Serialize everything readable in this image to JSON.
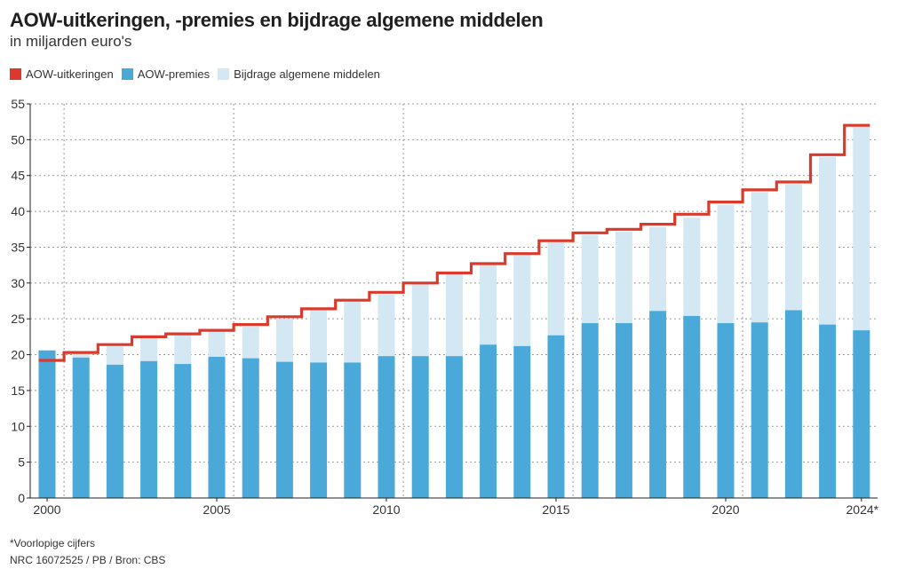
{
  "header": {
    "title": "AOW-uitkeringen, -premies en bijdrage algemene middelen",
    "subtitle": "in miljarden euro's"
  },
  "legend": {
    "items": [
      {
        "label": "AOW-uitkeringen",
        "color": "#d93a2b"
      },
      {
        "label": "AOW-premies",
        "color": "#4aa9d8"
      },
      {
        "label": "Bijdrage algemene middelen",
        "color": "#d3e8f3"
      }
    ]
  },
  "footer": {
    "note": "*Voorlopige cijfers",
    "credit": "NRC 16072525 / PB / Bron: CBS"
  },
  "chart_data": {
    "type": "bar",
    "stacked": true,
    "categories": [
      "2000",
      "2001",
      "2002",
      "2003",
      "2004",
      "2005",
      "2006",
      "2007",
      "2008",
      "2009",
      "2010",
      "2011",
      "2012",
      "2013",
      "2014",
      "2015",
      "2016",
      "2017",
      "2018",
      "2019",
      "2020",
      "2021",
      "2022",
      "2023",
      "2024*"
    ],
    "x_tick_labels": [
      "2000",
      "2005",
      "2010",
      "2015",
      "2020",
      "2024*"
    ],
    "ylim": [
      0,
      55
    ],
    "y_ticks": [
      0,
      5,
      10,
      15,
      20,
      25,
      30,
      35,
      40,
      45,
      50,
      55
    ],
    "grid": true,
    "series": [
      {
        "name": "AOW-premies",
        "type": "bar",
        "color": "#4aa9d8",
        "values": [
          20.6,
          19.6,
          18.6,
          19.1,
          18.7,
          19.7,
          19.5,
          19.0,
          18.9,
          18.9,
          19.8,
          19.8,
          19.8,
          21.4,
          21.2,
          22.7,
          24.4,
          24.4,
          26.1,
          25.4,
          24.4,
          24.5,
          26.2,
          24.2,
          23.4
        ]
      },
      {
        "name": "Bijdrage algemene middelen",
        "type": "bar",
        "color": "#d3e8f3",
        "values": [
          0,
          0.6,
          2.6,
          3.2,
          4.1,
          3.6,
          4.4,
          6.0,
          7.4,
          8.5,
          8.6,
          10.1,
          11.5,
          11.2,
          12.8,
          13.0,
          12.3,
          12.8,
          11.7,
          13.7,
          16.5,
          18.2,
          17.6,
          23.4,
          28.4
        ]
      },
      {
        "name": "AOW-uitkeringen",
        "type": "step",
        "color": "#d93a2b",
        "values": [
          19.2,
          20.3,
          21.4,
          22.5,
          22.9,
          23.4,
          24.2,
          25.3,
          26.4,
          27.6,
          28.7,
          30.0,
          31.4,
          32.7,
          34.1,
          35.9,
          37.0,
          37.5,
          38.2,
          39.6,
          41.3,
          43.0,
          44.1,
          47.9,
          52.0
        ]
      }
    ]
  }
}
